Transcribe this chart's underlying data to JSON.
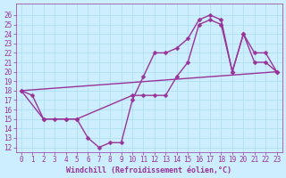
{
  "bg_color": "#cceeff",
  "grid_color": "#aaddee",
  "line_color": "#993399",
  "markersize": 2.5,
  "linewidth": 1.0,
  "xlabel": "Windchill (Refroidissement éolien,°C)",
  "xlabel_fontsize": 6.0,
  "tick_fontsize": 5.5,
  "ylim": [
    11.5,
    27.2
  ],
  "xlim": [
    -0.5,
    23.5
  ],
  "yticks": [
    12,
    13,
    14,
    15,
    16,
    17,
    18,
    19,
    20,
    21,
    22,
    23,
    24,
    25,
    26
  ],
  "xticks": [
    0,
    1,
    2,
    3,
    4,
    5,
    6,
    7,
    8,
    9,
    10,
    11,
    12,
    13,
    14,
    15,
    16,
    17,
    18,
    19,
    20,
    21,
    22,
    23
  ],
  "line1_x": [
    0,
    1,
    2,
    3,
    4,
    5,
    6,
    7,
    8,
    9,
    10,
    11,
    12,
    13,
    14,
    15,
    16,
    17,
    18,
    19,
    20,
    21,
    22,
    23
  ],
  "line1_y": [
    18,
    17.5,
    15,
    15,
    15,
    15,
    13,
    12,
    12.5,
    12.5,
    17,
    19.5,
    22,
    22,
    22.5,
    23.5,
    25.5,
    26,
    25.5,
    20,
    24,
    21,
    21,
    20
  ],
  "line3_x": [
    0,
    2,
    4,
    5,
    10,
    11,
    12,
    13,
    14,
    15,
    16,
    17,
    18,
    19,
    20,
    21,
    22,
    23
  ],
  "line3_y": [
    18,
    15,
    15,
    15,
    17.5,
    17.5,
    17.5,
    17.5,
    19.5,
    21,
    25,
    25.5,
    25,
    20,
    24,
    22,
    22,
    20
  ],
  "line2_x": [
    0,
    23
  ],
  "line2_y": [
    18,
    20
  ]
}
